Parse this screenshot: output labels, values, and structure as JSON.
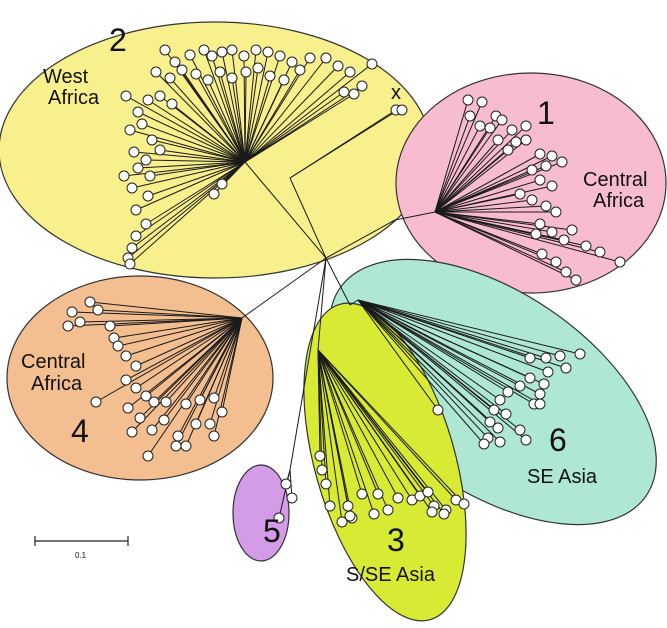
{
  "clusters": [
    {
      "number": "2",
      "region": [
        "West",
        "Africa"
      ],
      "color": "#f8f08c"
    },
    {
      "number": "1",
      "region": [
        "Central",
        "Africa"
      ],
      "color": "#f8bcd0"
    },
    {
      "number": "4",
      "region": [
        "Central",
        "Africa"
      ],
      "color": "#f4bf90"
    },
    {
      "number": "6",
      "region": [
        "SE Asia"
      ],
      "color": "#aee8d4"
    },
    {
      "number": "3",
      "region": [
        "S/SE Asia"
      ],
      "color": "#d9ea34"
    },
    {
      "number": "5",
      "region": [],
      "color": "#d49be6"
    }
  ],
  "marker": "x",
  "scale_bar": {
    "label": "0.1"
  }
}
